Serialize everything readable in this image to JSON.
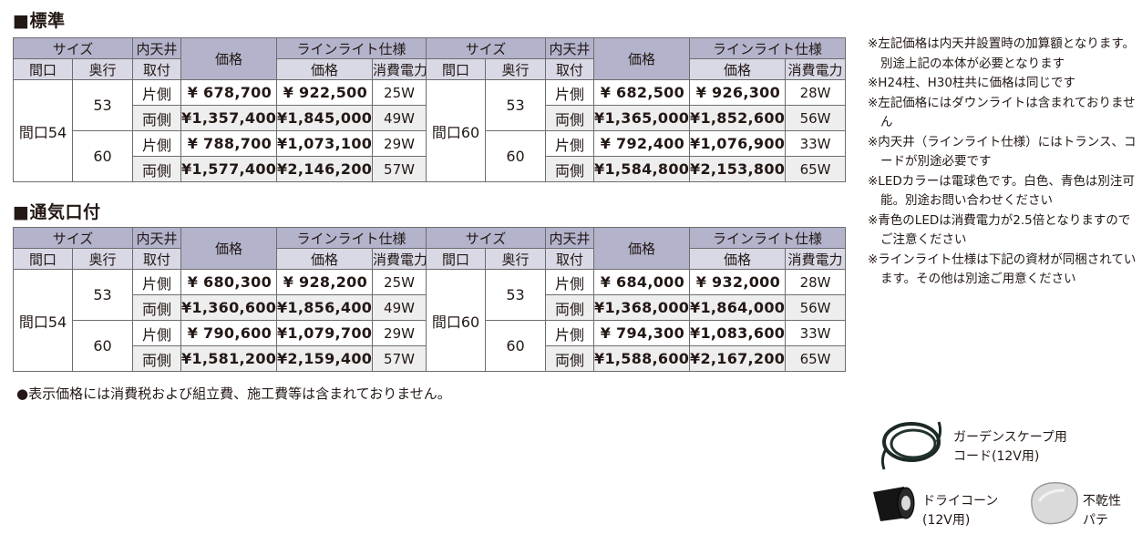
{
  "sections": [
    {
      "title": "■標準",
      "headers": {
        "size": "サイズ",
        "naitenjo": "内天井",
        "toritsuke": "取付",
        "price": "価格",
        "lineLight": "ラインライト仕様",
        "maguchi": "間口",
        "okuyuki": "奥行",
        "lineLightPrice": "価格",
        "power": "消費電力"
      },
      "blocks": [
        {
          "width": "間口54",
          "rows": [
            {
              "depth": "53",
              "side": "片側",
              "price": "¥  678,700",
              "llPrice": "¥  922,500",
              "power": "25W"
            },
            {
              "depth": "53",
              "side": "両側",
              "price": "¥1,357,400",
              "llPrice": "¥1,845,000",
              "power": "49W"
            },
            {
              "depth": "60",
              "side": "片側",
              "price": "¥  788,700",
              "llPrice": "¥1,073,100",
              "power": "29W"
            },
            {
              "depth": "60",
              "side": "両側",
              "price": "¥1,577,400",
              "llPrice": "¥2,146,200",
              "power": "57W"
            }
          ]
        },
        {
          "width": "間口60",
          "rows": [
            {
              "depth": "53",
              "side": "片側",
              "price": "¥  682,500",
              "llPrice": "¥  926,300",
              "power": "28W"
            },
            {
              "depth": "53",
              "side": "両側",
              "price": "¥1,365,000",
              "llPrice": "¥1,852,600",
              "power": "56W"
            },
            {
              "depth": "60",
              "side": "片側",
              "price": "¥  792,400",
              "llPrice": "¥1,076,900",
              "power": "33W"
            },
            {
              "depth": "60",
              "side": "両側",
              "price": "¥1,584,800",
              "llPrice": "¥2,153,800",
              "power": "65W"
            }
          ]
        }
      ]
    },
    {
      "title": "■通気口付",
      "headers": {
        "size": "サイズ",
        "naitenjo": "内天井",
        "toritsuke": "取付",
        "price": "価格",
        "lineLight": "ラインライト仕様",
        "maguchi": "間口",
        "okuyuki": "奥行",
        "lineLightPrice": "価格",
        "power": "消費電力"
      },
      "blocks": [
        {
          "width": "間口54",
          "rows": [
            {
              "depth": "53",
              "side": "片側",
              "price": "¥  680,300",
              "llPrice": "¥  928,200",
              "power": "25W"
            },
            {
              "depth": "53",
              "side": "両側",
              "price": "¥1,360,600",
              "llPrice": "¥1,856,400",
              "power": "49W"
            },
            {
              "depth": "60",
              "side": "片側",
              "price": "¥  790,600",
              "llPrice": "¥1,079,700",
              "power": "29W"
            },
            {
              "depth": "60",
              "side": "両側",
              "price": "¥1,581,200",
              "llPrice": "¥2,159,400",
              "power": "57W"
            }
          ]
        },
        {
          "width": "間口60",
          "rows": [
            {
              "depth": "53",
              "side": "片側",
              "price": "¥  684,000",
              "llPrice": "¥  932,000",
              "power": "28W"
            },
            {
              "depth": "53",
              "side": "両側",
              "price": "¥1,368,000",
              "llPrice": "¥1,864,000",
              "power": "56W"
            },
            {
              "depth": "60",
              "side": "片側",
              "price": "¥  794,300",
              "llPrice": "¥1,083,600",
              "power": "33W"
            },
            {
              "depth": "60",
              "side": "両側",
              "price": "¥1,588,600",
              "llPrice": "¥2,167,200",
              "power": "65W"
            }
          ]
        }
      ]
    }
  ],
  "footnote": "●表示価格には消費税および組立費、施工費等は含まれておりません。",
  "notes": [
    "※左記価格は内天井設置時の加算額となります。別途上記の本体が必要となります",
    "※H24柱、H30柱共に価格は同じです",
    "※左記価格にはダウンライトは含まれておりません",
    "※内天井（ラインライト仕様）にはトランス、コードが別途必要です",
    "※LEDカラーは電球色です。白色、青色は別注可能。別途お問い合わせください",
    "※青色のLEDは消費電力が2.5倍となりますのでご注意ください",
    "※ラインライト仕様は下記の資材が同梱されています。その他は別途ご用意ください"
  ],
  "materials": {
    "cord": {
      "line1": "ガーデンスケープ用",
      "line2": "コード(12V用)"
    },
    "dryCone": {
      "line1": "ドライコーン",
      "line2": "(12V用)"
    },
    "putty": {
      "line1": "不乾性",
      "line2": "パテ"
    }
  }
}
